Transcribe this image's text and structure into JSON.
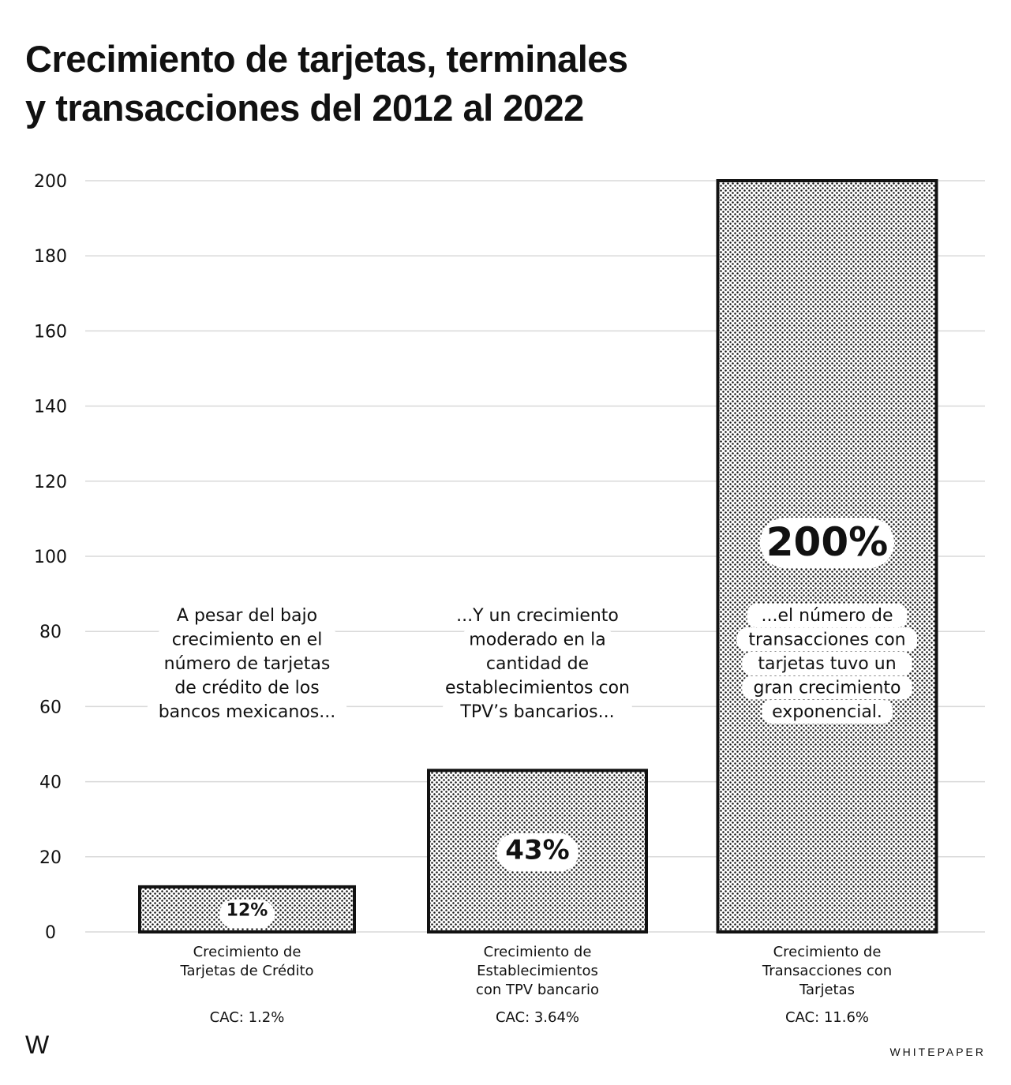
{
  "title_lines": [
    "Crecimiento de tarjetas, terminales",
    "y transacciones del 2012 al 2022"
  ],
  "chart_data": {
    "type": "bar",
    "categories": [
      [
        "Crecimiento de",
        "Tarjetas de Crédito"
      ],
      [
        "Crecimiento de",
        "Establecimientos",
        "con TPV bancario"
      ],
      [
        "Crecimiento de",
        "Transacciones con",
        "Tarjetas"
      ]
    ],
    "values": [
      12,
      43,
      200
    ],
    "data_labels": [
      "12%",
      "43%",
      "200%"
    ],
    "cac_labels": [
      "CAC: 1.2%",
      "CAC: 3.64%",
      "CAC: 11.6%"
    ],
    "yticks": [
      0,
      20,
      40,
      60,
      80,
      100,
      120,
      140,
      160,
      180,
      200
    ],
    "ylim": [
      0,
      200
    ],
    "grid": true,
    "annotations": [
      [
        "A pesar del bajo",
        "crecimiento en el",
        "número de tarjetas",
        "de crédito de los",
        "bancos mexicanos..."
      ],
      [
        "...Y un crecimiento",
        "moderado en la",
        "cantidad de",
        "establecimientos con",
        "TPV’s bancarios..."
      ],
      [
        "...el número de",
        "transacciones con",
        "tarjetas tuvo un",
        "gran crecimiento",
        "exponencial."
      ]
    ],
    "colors": {
      "bar_fill": "#ffffff",
      "dots": "#111111",
      "grid": "#d9d9d9",
      "outline": "#111111"
    }
  },
  "footer": {
    "logo": "W",
    "brand": "WHITEPAPER"
  }
}
